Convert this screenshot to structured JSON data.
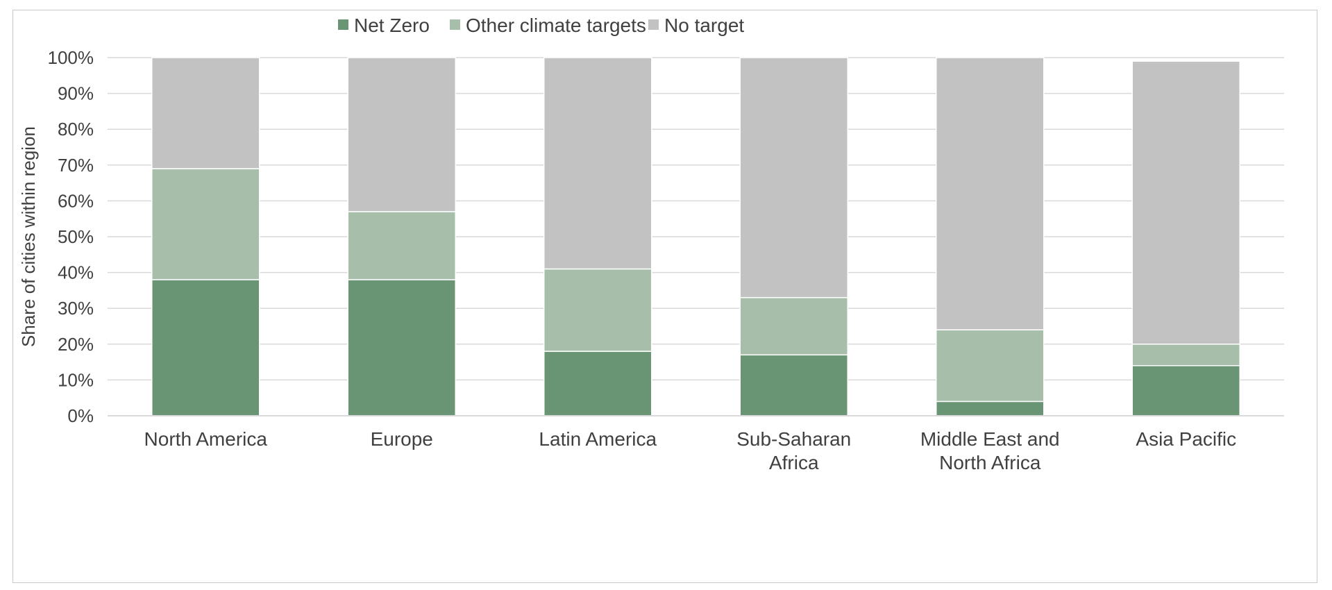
{
  "chart_data": {
    "type": "bar",
    "stacked": true,
    "title": "",
    "xlabel": "",
    "ylabel": "Share of cities within region",
    "ylim": [
      0,
      100
    ],
    "yticks": [
      "0%",
      "10%",
      "20%",
      "30%",
      "40%",
      "50%",
      "60%",
      "70%",
      "80%",
      "90%",
      "100%"
    ],
    "categories": [
      [
        "North America"
      ],
      [
        "Europe"
      ],
      [
        "Latin America"
      ],
      [
        "Sub-Saharan",
        "Africa"
      ],
      [
        "Middle East and",
        "North Africa"
      ],
      [
        "Asia Pacific"
      ]
    ],
    "series": [
      {
        "name": "Net Zero",
        "color": "#6a9574",
        "values": [
          38,
          38,
          18,
          17,
          4,
          14
        ]
      },
      {
        "name": "Other climate targets",
        "color": "#a7bfaa",
        "values": [
          31,
          19,
          23,
          16,
          20,
          6
        ]
      },
      {
        "name": "No target",
        "color": "#c2c2c2",
        "values": [
          31,
          43,
          59,
          67,
          76,
          79
        ]
      }
    ],
    "grid": true,
    "legend": "top-center"
  }
}
